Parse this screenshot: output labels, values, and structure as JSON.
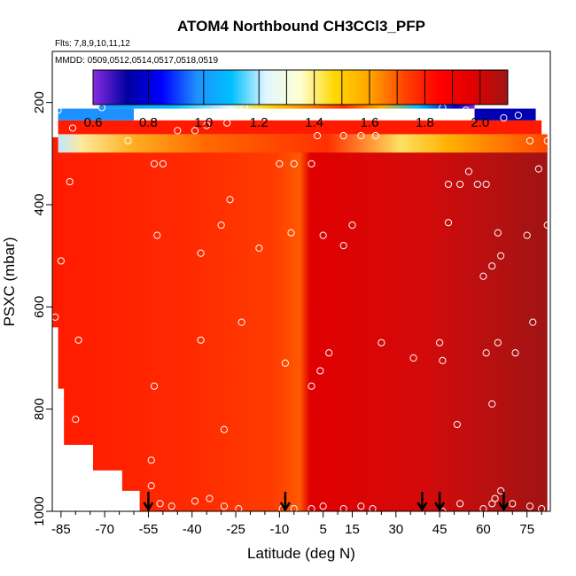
{
  "chart_data": {
    "type": "heatmap",
    "title": "ATOM4 Northbound CH3CCl3_PFP",
    "flights_label": "Flts: 7,8,9,10,11,12",
    "dates_label": "MMDD: 0509,0512,0514,0517,0518,0519",
    "xlabel": "Latitude (deg N)",
    "ylabel": "PSXC (mbar)",
    "xlim": [
      -88,
      83
    ],
    "ylim": [
      1000,
      100
    ],
    "x_ticks": [
      -85,
      -70,
      -55,
      -40,
      -25,
      -10,
      5,
      15,
      30,
      45,
      60,
      75
    ],
    "y_ticks": [
      200,
      400,
      600,
      800,
      1000
    ],
    "colorbar": {
      "range": [
        0.6,
        2.1
      ],
      "tick_values": [
        0.6,
        0.8,
        1.0,
        1.2,
        1.4,
        1.6,
        1.8,
        2.0
      ],
      "tick_labels": [
        "0.6",
        "0.8",
        "1.0",
        "1.2",
        "1.4",
        "1.6",
        "1.8",
        "2.0"
      ],
      "colors": [
        "#8a2be2",
        "#0000a0",
        "#0000ff",
        "#1e90ff",
        "#00bfff",
        "#e0f7ff",
        "#ffffd0",
        "#ffd700",
        "#ffa500",
        "#ff4500",
        "#ff0000",
        "#e00000",
        "#a01414"
      ]
    },
    "profile_latitudes": [
      -55,
      -8,
      39,
      45,
      67
    ],
    "samples": [
      {
        "lat": -86,
        "p": 215
      },
      {
        "lat": -81,
        "p": 250
      },
      {
        "lat": -71,
        "p": 210
      },
      {
        "lat": -62,
        "p": 275
      },
      {
        "lat": -53,
        "p": 320
      },
      {
        "lat": -50,
        "p": 320
      },
      {
        "lat": -45,
        "p": 255
      },
      {
        "lat": -39,
        "p": 255
      },
      {
        "lat": -35,
        "p": 245
      },
      {
        "lat": -28,
        "p": 240
      },
      {
        "lat": -22,
        "p": 210
      },
      {
        "lat": -10,
        "p": 320
      },
      {
        "lat": -5,
        "p": 320
      },
      {
        "lat": 1,
        "p": 320
      },
      {
        "lat": 3,
        "p": 265
      },
      {
        "lat": 12,
        "p": 265
      },
      {
        "lat": 18,
        "p": 265
      },
      {
        "lat": 23,
        "p": 265
      },
      {
        "lat": 46,
        "p": 210
      },
      {
        "lat": 54,
        "p": 215
      },
      {
        "lat": 67,
        "p": 230
      },
      {
        "lat": 72,
        "p": 225
      },
      {
        "lat": 76,
        "p": 275
      },
      {
        "lat": 79,
        "p": 330
      },
      {
        "lat": 82,
        "p": 275
      },
      {
        "lat": 48,
        "p": 360
      },
      {
        "lat": 52,
        "p": 360
      },
      {
        "lat": 55,
        "p": 335
      },
      {
        "lat": 58,
        "p": 360
      },
      {
        "lat": 61,
        "p": 360
      },
      {
        "lat": -85,
        "p": 510
      },
      {
        "lat": -82,
        "p": 355
      },
      {
        "lat": -52,
        "p": 460
      },
      {
        "lat": -37,
        "p": 495
      },
      {
        "lat": -30,
        "p": 440
      },
      {
        "lat": -27,
        "p": 390
      },
      {
        "lat": -17,
        "p": 485
      },
      {
        "lat": -6,
        "p": 455
      },
      {
        "lat": 5,
        "p": 460
      },
      {
        "lat": 12,
        "p": 480
      },
      {
        "lat": 15,
        "p": 440
      },
      {
        "lat": 48,
        "p": 435
      },
      {
        "lat": 60,
        "p": 540
      },
      {
        "lat": 63,
        "p": 520
      },
      {
        "lat": 65,
        "p": 455
      },
      {
        "lat": 66,
        "p": 500
      },
      {
        "lat": 75,
        "p": 460
      },
      {
        "lat": 82,
        "p": 440
      },
      {
        "lat": -87,
        "p": 620
      },
      {
        "lat": -79,
        "p": 665
      },
      {
        "lat": -37,
        "p": 665
      },
      {
        "lat": -23,
        "p": 630
      },
      {
        "lat": -8,
        "p": 710
      },
      {
        "lat": 7,
        "p": 690
      },
      {
        "lat": 4,
        "p": 725
      },
      {
        "lat": 1,
        "p": 755
      },
      {
        "lat": 25,
        "p": 670
      },
      {
        "lat": 36,
        "p": 700
      },
      {
        "lat": 45,
        "p": 670
      },
      {
        "lat": 46,
        "p": 705
      },
      {
        "lat": 61,
        "p": 690
      },
      {
        "lat": 65,
        "p": 670
      },
      {
        "lat": 71,
        "p": 690
      },
      {
        "lat": 77,
        "p": 630
      },
      {
        "lat": -80,
        "p": 820
      },
      {
        "lat": -53,
        "p": 755
      },
      {
        "lat": -29,
        "p": 840
      },
      {
        "lat": 51,
        "p": 830
      },
      {
        "lat": 63,
        "p": 790
      },
      {
        "lat": -54,
        "p": 900
      },
      {
        "lat": -54,
        "p": 950
      },
      {
        "lat": -51,
        "p": 985
      },
      {
        "lat": -47,
        "p": 990
      },
      {
        "lat": -39,
        "p": 980
      },
      {
        "lat": -34,
        "p": 975
      },
      {
        "lat": -29,
        "p": 990
      },
      {
        "lat": -24,
        "p": 995
      },
      {
        "lat": -9,
        "p": 995
      },
      {
        "lat": -5,
        "p": 995
      },
      {
        "lat": 1,
        "p": 995
      },
      {
        "lat": 5,
        "p": 990
      },
      {
        "lat": 12,
        "p": 995
      },
      {
        "lat": 18,
        "p": 990
      },
      {
        "lat": 22,
        "p": 995
      },
      {
        "lat": 46,
        "p": 1000
      },
      {
        "lat": 52,
        "p": 985
      },
      {
        "lat": 60,
        "p": 995
      },
      {
        "lat": 63,
        "p": 985
      },
      {
        "lat": 64,
        "p": 975
      },
      {
        "lat": 66,
        "p": 960
      },
      {
        "lat": 70,
        "p": 985
      },
      {
        "lat": 76,
        "p": 990
      },
      {
        "lat": 80,
        "p": 995
      }
    ]
  }
}
